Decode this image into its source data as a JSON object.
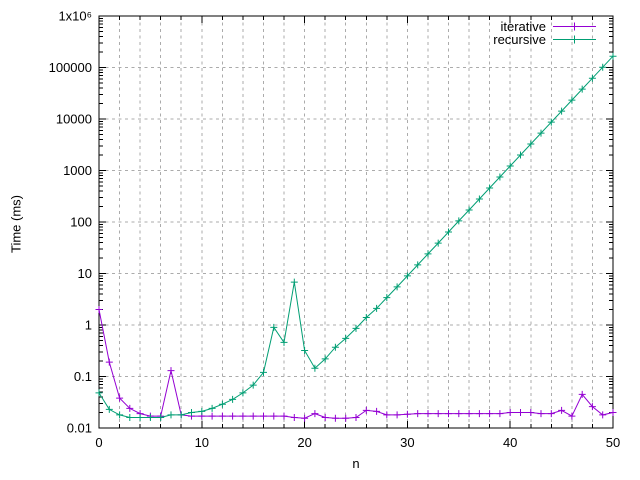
{
  "figure": {
    "background": "#ffffff",
    "y_axis_title": "Time (ms)",
    "x_axis_title": "n"
  },
  "legend": {
    "items": [
      {
        "label": "iterative",
        "color": "#9400d3"
      },
      {
        "label": "recursive",
        "color": "#009e73"
      }
    ]
  },
  "chart_data": {
    "type": "line",
    "title": "",
    "xlabel": "n",
    "ylabel": "Time (ms)",
    "x_scale": "linear",
    "y_scale": "log10",
    "xlim": [
      0,
      50
    ],
    "ylim": [
      0.01,
      1000000
    ],
    "grid": true,
    "legend_position": "top-right-inside",
    "grid_color": "#ababab",
    "border_color": "#000000",
    "x_ticks": {
      "values": [
        0,
        10,
        20,
        30,
        40,
        50
      ],
      "labels": [
        "0",
        "10",
        "20",
        "30",
        "40",
        "50"
      ],
      "minor_step": 2
    },
    "y_ticks": {
      "values": [
        0.01,
        0.1,
        1,
        10,
        100,
        1000,
        10000,
        100000,
        1000000
      ],
      "labels": [
        "0.01",
        "0.1",
        "1",
        "10",
        "100",
        "1000",
        "10000",
        "100000",
        "1x10⁶"
      ]
    },
    "x": [
      0,
      1,
      2,
      3,
      4,
      5,
      6,
      7,
      8,
      9,
      10,
      11,
      12,
      13,
      14,
      15,
      16,
      17,
      18,
      19,
      20,
      21,
      22,
      23,
      24,
      25,
      26,
      27,
      28,
      29,
      30,
      31,
      32,
      33,
      34,
      35,
      36,
      37,
      38,
      39,
      40,
      41,
      42,
      43,
      44,
      45,
      46,
      47,
      48,
      49,
      50
    ],
    "series": [
      {
        "name": "iterative",
        "color": "#9400d3",
        "marker": "plus",
        "values": [
          2.0,
          0.19,
          0.038,
          0.024,
          0.019,
          0.017,
          0.017,
          0.13,
          0.018,
          0.017,
          0.017,
          0.017,
          0.017,
          0.017,
          0.017,
          0.017,
          0.017,
          0.017,
          0.017,
          0.016,
          0.0155,
          0.019,
          0.016,
          0.0155,
          0.0155,
          0.016,
          0.022,
          0.021,
          0.018,
          0.018,
          0.0185,
          0.019,
          0.019,
          0.019,
          0.019,
          0.019,
          0.019,
          0.019,
          0.019,
          0.019,
          0.02,
          0.02,
          0.02,
          0.019,
          0.019,
          0.022,
          0.017,
          0.045,
          0.026,
          0.018,
          0.02
        ]
      },
      {
        "name": "recursive",
        "color": "#009e73",
        "marker": "plus",
        "values": [
          0.048,
          0.023,
          0.018,
          0.016,
          0.016,
          0.016,
          0.016,
          0.018,
          0.018,
          0.02,
          0.021,
          0.024,
          0.029,
          0.036,
          0.048,
          0.068,
          0.12,
          0.9,
          0.46,
          6.8,
          0.32,
          0.145,
          0.22,
          0.37,
          0.55,
          0.86,
          1.4,
          2.1,
          3.4,
          5.5,
          9,
          14.7,
          24,
          39,
          64,
          105,
          171,
          280,
          458,
          748,
          1222,
          1997,
          3263,
          5331,
          8710,
          14231,
          23252,
          37992,
          62075,
          101424,
          165715
        ]
      }
    ]
  }
}
